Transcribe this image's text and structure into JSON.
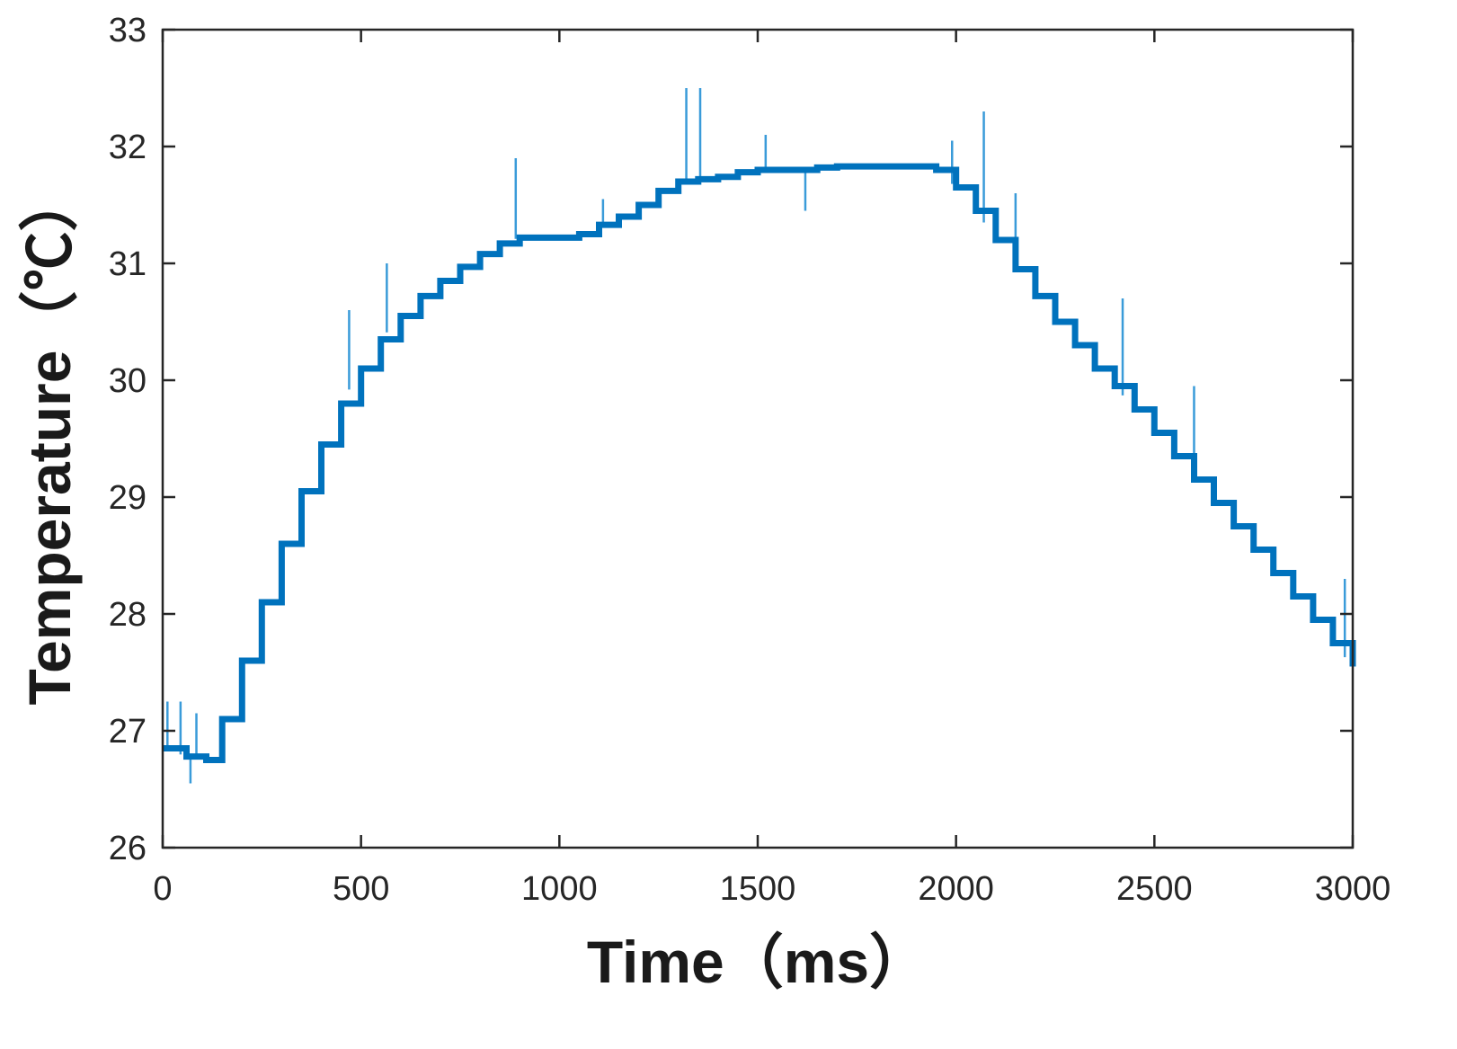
{
  "chart_data": {
    "type": "line",
    "title": "",
    "xlabel": "Time（ms）",
    "ylabel": "Temperature（℃）",
    "xlim": [
      0,
      3000
    ],
    "ylim": [
      26,
      33
    ],
    "x_ticks": [
      "0",
      "500",
      "1000",
      "1500",
      "2000",
      "2500",
      "3000"
    ],
    "y_ticks": [
      "26",
      "27",
      "28",
      "29",
      "30",
      "31",
      "32",
      "33"
    ],
    "grid": false,
    "legend": "none",
    "line_color": "#0072BD",
    "spike_color": "#3a9bd9",
    "series": [
      {
        "x": [
          0,
          60,
          110,
          150,
          200,
          250,
          300,
          350,
          400,
          450,
          500,
          550,
          600,
          650,
          700,
          750,
          800,
          850,
          900,
          950,
          1000,
          1050,
          1100,
          1150,
          1200,
          1250,
          1300,
          1350,
          1400,
          1450,
          1500,
          1550,
          1600,
          1650,
          1700,
          1750,
          1800,
          1850,
          1900,
          1950,
          2000,
          2050,
          2100,
          2150,
          2200,
          2250,
          2300,
          2350,
          2400,
          2450,
          2500,
          2550,
          2600,
          2650,
          2700,
          2750,
          2800,
          2850,
          2900,
          2950,
          3000
        ],
        "values": [
          26.85,
          26.78,
          26.75,
          27.1,
          27.6,
          28.1,
          28.6,
          29.05,
          29.45,
          29.8,
          30.1,
          30.35,
          30.55,
          30.72,
          30.85,
          30.97,
          31.08,
          31.17,
          31.22,
          31.22,
          31.22,
          31.25,
          31.33,
          31.4,
          31.5,
          31.62,
          31.7,
          31.72,
          31.74,
          31.78,
          31.8,
          31.8,
          31.8,
          31.82,
          31.83,
          31.83,
          31.83,
          31.83,
          31.83,
          31.8,
          31.65,
          31.45,
          31.2,
          30.95,
          30.72,
          30.5,
          30.3,
          30.1,
          29.95,
          29.75,
          29.55,
          29.35,
          29.15,
          28.95,
          28.75,
          28.55,
          28.35,
          28.15,
          27.95,
          27.75,
          27.55
        ]
      }
    ],
    "spikes": [
      {
        "x": 12,
        "y": 27.25
      },
      {
        "x": 45,
        "y": 27.25
      },
      {
        "x": 85,
        "y": 27.15
      },
      {
        "x": 70,
        "y": 26.55
      },
      {
        "x": 470,
        "y": 30.6
      },
      {
        "x": 565,
        "y": 31.0
      },
      {
        "x": 890,
        "y": 31.9
      },
      {
        "x": 1110,
        "y": 31.55
      },
      {
        "x": 1320,
        "y": 32.5
      },
      {
        "x": 1355,
        "y": 32.5
      },
      {
        "x": 1520,
        "y": 32.1
      },
      {
        "x": 1620,
        "y": 31.45
      },
      {
        "x": 1990,
        "y": 32.05
      },
      {
        "x": 2070,
        "y": 32.3
      },
      {
        "x": 2150,
        "y": 31.6
      },
      {
        "x": 2420,
        "y": 30.7
      },
      {
        "x": 2600,
        "y": 29.95
      },
      {
        "x": 2980,
        "y": 28.3
      }
    ]
  }
}
